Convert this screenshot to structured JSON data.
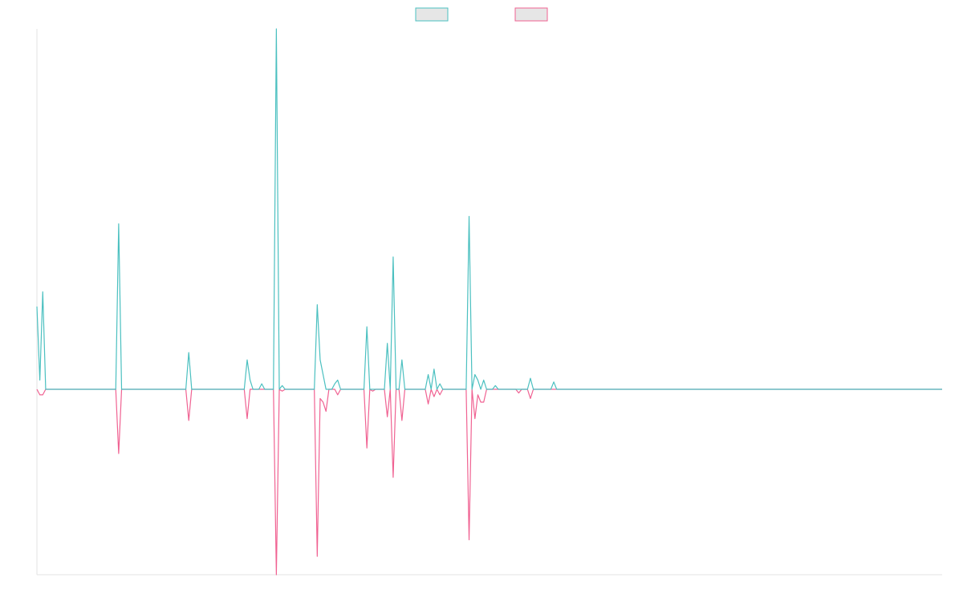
{
  "chart_data": {
    "type": "line",
    "title": "",
    "xlabel": "",
    "ylabel": "",
    "grid": false,
    "legend_position": "top-center",
    "ylim": [
      -100,
      100
    ],
    "series": [
      {
        "color": "#4bc0c0",
        "values": [
          [
            0,
            45
          ],
          [
            1,
            5
          ],
          [
            2,
            53
          ],
          [
            3,
            0
          ],
          [
            8,
            0
          ],
          [
            9,
            0
          ],
          [
            10,
            0
          ],
          [
            27,
            0
          ],
          [
            28,
            90
          ],
          [
            29,
            0
          ],
          [
            39,
            0
          ],
          [
            40,
            0
          ],
          [
            41,
            0
          ],
          [
            51,
            0
          ],
          [
            52,
            20
          ],
          [
            53,
            0
          ],
          [
            71,
            0
          ],
          [
            72,
            16
          ],
          [
            73,
            5
          ],
          [
            74,
            0
          ],
          [
            76,
            0
          ],
          [
            77,
            3
          ],
          [
            78,
            0
          ],
          [
            81,
            0
          ],
          [
            82,
            196
          ],
          [
            83,
            0
          ],
          [
            84,
            2
          ],
          [
            85,
            0
          ],
          [
            95,
            0
          ],
          [
            96,
            46
          ],
          [
            97,
            16
          ],
          [
            98,
            8
          ],
          [
            99,
            0
          ],
          [
            100,
            0
          ],
          [
            101,
            0
          ],
          [
            102,
            3
          ],
          [
            103,
            5
          ],
          [
            104,
            0
          ],
          [
            108,
            0
          ],
          [
            109,
            0
          ],
          [
            110,
            0
          ],
          [
            112,
            0
          ],
          [
            113,
            34
          ],
          [
            114,
            0
          ],
          [
            115,
            0
          ],
          [
            116,
            0
          ],
          [
            119,
            0
          ],
          [
            120,
            25
          ],
          [
            121,
            0
          ],
          [
            122,
            72
          ],
          [
            123,
            0
          ],
          [
            124,
            0
          ],
          [
            125,
            16
          ],
          [
            126,
            0
          ],
          [
            133,
            0
          ],
          [
            134,
            8
          ],
          [
            135,
            0
          ],
          [
            136,
            11
          ],
          [
            137,
            0
          ],
          [
            138,
            3
          ],
          [
            139,
            0
          ],
          [
            147,
            0
          ],
          [
            148,
            94
          ],
          [
            149,
            0
          ],
          [
            150,
            8
          ],
          [
            151,
            5
          ],
          [
            152,
            0
          ],
          [
            153,
            5
          ],
          [
            154,
            0
          ],
          [
            156,
            0
          ],
          [
            157,
            2
          ],
          [
            158,
            0
          ],
          [
            164,
            0
          ],
          [
            165,
            0
          ],
          [
            166,
            0
          ],
          [
            168,
            0
          ],
          [
            169,
            6
          ],
          [
            170,
            0
          ],
          [
            172,
            0
          ],
          [
            173,
            0
          ],
          [
            174,
            0
          ],
          [
            176,
            0
          ],
          [
            177,
            4
          ],
          [
            178,
            0
          ],
          [
            310,
            0
          ]
        ]
      },
      {
        "color": "#f06292",
        "values": [
          [
            0,
            0
          ],
          [
            1,
            -3
          ],
          [
            2,
            -3
          ],
          [
            3,
            0
          ],
          [
            8,
            0
          ],
          [
            9,
            0
          ],
          [
            10,
            0
          ],
          [
            27,
            0
          ],
          [
            28,
            -35
          ],
          [
            29,
            0
          ],
          [
            39,
            0
          ],
          [
            40,
            0
          ],
          [
            41,
            0
          ],
          [
            51,
            0
          ],
          [
            52,
            -17
          ],
          [
            53,
            0
          ],
          [
            71,
            0
          ],
          [
            72,
            -16
          ],
          [
            73,
            0
          ],
          [
            81,
            0
          ],
          [
            82,
            -101
          ],
          [
            83,
            0
          ],
          [
            84,
            -1
          ],
          [
            85,
            0
          ],
          [
            95,
            0
          ],
          [
            96,
            -91
          ],
          [
            97,
            -5
          ],
          [
            98,
            -7
          ],
          [
            99,
            -12
          ],
          [
            100,
            0
          ],
          [
            101,
            0
          ],
          [
            102,
            0
          ],
          [
            103,
            -3
          ],
          [
            104,
            0
          ],
          [
            108,
            0
          ],
          [
            109,
            0
          ],
          [
            110,
            0
          ],
          [
            112,
            0
          ],
          [
            113,
            -32
          ],
          [
            114,
            0
          ],
          [
            115,
            -1
          ],
          [
            116,
            0
          ],
          [
            119,
            0
          ],
          [
            120,
            -15
          ],
          [
            121,
            0
          ],
          [
            122,
            -48
          ],
          [
            123,
            0
          ],
          [
            124,
            0
          ],
          [
            125,
            -17
          ],
          [
            126,
            0
          ],
          [
            133,
            0
          ],
          [
            134,
            -8
          ],
          [
            135,
            0
          ],
          [
            136,
            -4
          ],
          [
            137,
            0
          ],
          [
            138,
            -3
          ],
          [
            139,
            0
          ],
          [
            147,
            0
          ],
          [
            148,
            -82
          ],
          [
            149,
            0
          ],
          [
            150,
            -16
          ],
          [
            151,
            -3
          ],
          [
            152,
            -7
          ],
          [
            153,
            -7
          ],
          [
            154,
            0
          ],
          [
            156,
            0
          ],
          [
            157,
            0
          ],
          [
            158,
            0
          ],
          [
            164,
            0
          ],
          [
            165,
            -2
          ],
          [
            166,
            0
          ],
          [
            168,
            0
          ],
          [
            169,
            -5
          ],
          [
            170,
            0
          ],
          [
            172,
            0
          ],
          [
            173,
            0
          ],
          [
            174,
            0
          ],
          [
            176,
            0
          ],
          [
            177,
            0
          ],
          [
            178,
            0
          ],
          [
            310,
            0
          ]
        ]
      }
    ]
  }
}
